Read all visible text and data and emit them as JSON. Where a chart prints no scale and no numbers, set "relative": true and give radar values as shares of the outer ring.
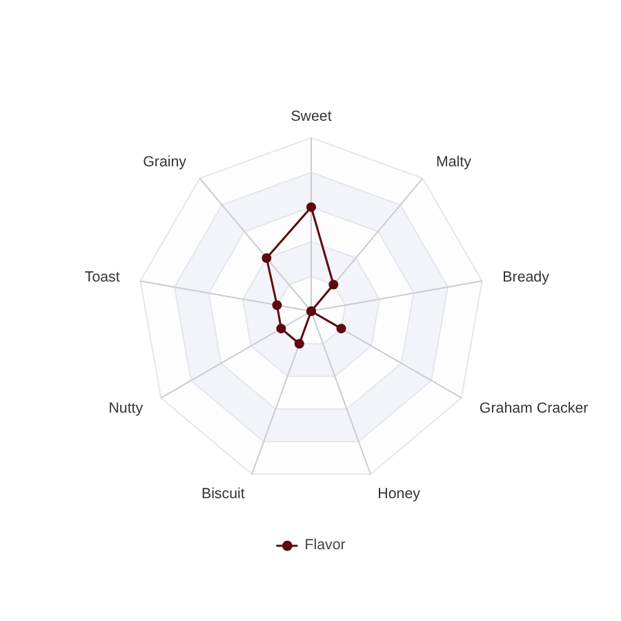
{
  "chart_data": {
    "type": "radar",
    "relative": true,
    "categories": [
      "Sweet",
      "Malty",
      "Bready",
      "Graham Cracker",
      "Honey",
      "Biscuit",
      "Nutty",
      "Toast",
      "Grainy"
    ],
    "series": [
      {
        "name": "Flavor",
        "color": "#5c0a0f",
        "values": [
          0.6,
          0.2,
          0,
          0.2,
          0,
          0.2,
          0.2,
          0.2,
          0.4
        ]
      }
    ],
    "marker": "circle",
    "legend": "bottom",
    "grid": true
  }
}
